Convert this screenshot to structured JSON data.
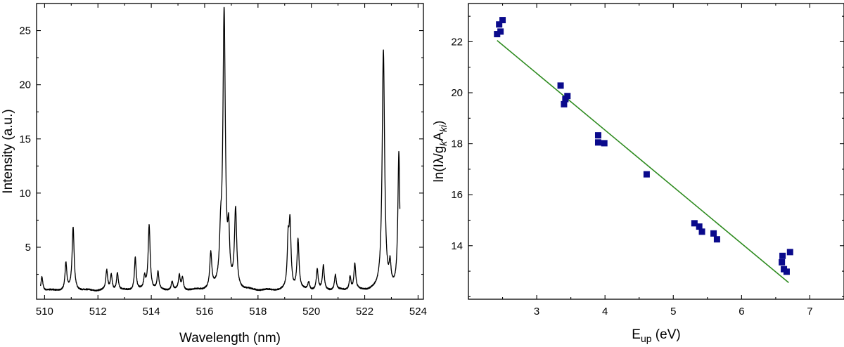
{
  "chart_data": [
    {
      "type": "line",
      "title": "",
      "xlabel": "Wavelength (nm)",
      "ylabel": "Intensity (a.u.)",
      "xlim": [
        509.7,
        524.2
      ],
      "ylim": [
        0.2,
        27.5
      ],
      "x_major_ticks": [
        510,
        512,
        514,
        516,
        518,
        520,
        522,
        524
      ],
      "y_major_ticks": [
        5,
        10,
        15,
        20,
        25
      ],
      "baseline": 1.0,
      "range": [
        509.85,
        523.32
      ],
      "peaks": [
        {
          "x": 509.9,
          "y": 2.3,
          "w": 0.04
        },
        {
          "x": 510.8,
          "y": 3.5,
          "w": 0.04
        },
        {
          "x": 511.07,
          "y": 6.8,
          "w": 0.045
        },
        {
          "x": 512.33,
          "y": 2.8,
          "w": 0.04
        },
        {
          "x": 512.5,
          "y": 2.4,
          "w": 0.04
        },
        {
          "x": 512.73,
          "y": 2.6,
          "w": 0.04
        },
        {
          "x": 513.4,
          "y": 4.0,
          "w": 0.04
        },
        {
          "x": 513.75,
          "y": 2.1,
          "w": 0.04
        },
        {
          "x": 513.92,
          "y": 7.0,
          "w": 0.045
        },
        {
          "x": 514.25,
          "y": 2.6,
          "w": 0.04
        },
        {
          "x": 514.78,
          "y": 1.8,
          "w": 0.04
        },
        {
          "x": 515.05,
          "y": 2.3,
          "w": 0.04
        },
        {
          "x": 515.17,
          "y": 2.1,
          "w": 0.04
        },
        {
          "x": 516.23,
          "y": 4.2,
          "w": 0.045
        },
        {
          "x": 516.6,
          "y": 4.7,
          "w": 0.05
        },
        {
          "x": 516.73,
          "y": 26.4,
          "w": 0.055
        },
        {
          "x": 516.9,
          "y": 5.3,
          "w": 0.04
        },
        {
          "x": 517.16,
          "y": 8.2,
          "w": 0.05
        },
        {
          "x": 519.13,
          "y": 5.0,
          "w": 0.04
        },
        {
          "x": 519.2,
          "y": 6.8,
          "w": 0.045
        },
        {
          "x": 519.5,
          "y": 5.6,
          "w": 0.045
        },
        {
          "x": 519.9,
          "y": 1.7,
          "w": 0.04
        },
        {
          "x": 520.22,
          "y": 2.9,
          "w": 0.04
        },
        {
          "x": 520.45,
          "y": 3.2,
          "w": 0.04
        },
        {
          "x": 520.9,
          "y": 2.4,
          "w": 0.04
        },
        {
          "x": 521.45,
          "y": 2.2,
          "w": 0.04
        },
        {
          "x": 521.63,
          "y": 3.4,
          "w": 0.04
        },
        {
          "x": 522.7,
          "y": 23.1,
          "w": 0.055
        },
        {
          "x": 522.95,
          "y": 2.9,
          "w": 0.04
        },
        {
          "x": 523.28,
          "y": 13.6,
          "w": 0.045
        }
      ]
    },
    {
      "type": "scatter",
      "title": "",
      "xlabel": "E",
      "xlabel_sub": "up",
      "xlabel_unit": " (eV)",
      "ylabel_parts": [
        "ln(Iλ/g",
        "k",
        "A",
        "ki",
        ")"
      ],
      "xlim": [
        2.0,
        7.5
      ],
      "ylim": [
        11.9,
        23.5
      ],
      "x_major_ticks": [
        3,
        4,
        5,
        6,
        7
      ],
      "y_major_ticks": [
        14,
        16,
        18,
        20,
        22
      ],
      "marker_color": "#0a0a8c",
      "fit_color": "#2e8b1f",
      "points": [
        {
          "x": 2.42,
          "y": 22.3
        },
        {
          "x": 2.45,
          "y": 22.68
        },
        {
          "x": 2.47,
          "y": 22.4
        },
        {
          "x": 2.5,
          "y": 22.85
        },
        {
          "x": 3.35,
          "y": 20.28
        },
        {
          "x": 3.4,
          "y": 19.55
        },
        {
          "x": 3.42,
          "y": 19.75
        },
        {
          "x": 3.45,
          "y": 19.87
        },
        {
          "x": 3.9,
          "y": 18.33
        },
        {
          "x": 3.9,
          "y": 18.05
        },
        {
          "x": 3.99,
          "y": 18.02
        },
        {
          "x": 4.61,
          "y": 16.8
        },
        {
          "x": 5.31,
          "y": 14.88
        },
        {
          "x": 5.38,
          "y": 14.75
        },
        {
          "x": 5.42,
          "y": 14.55
        },
        {
          "x": 5.59,
          "y": 14.48
        },
        {
          "x": 5.64,
          "y": 14.25
        },
        {
          "x": 6.59,
          "y": 13.35
        },
        {
          "x": 6.6,
          "y": 13.6
        },
        {
          "x": 6.62,
          "y": 13.08
        },
        {
          "x": 6.66,
          "y": 12.98
        },
        {
          "x": 6.71,
          "y": 13.75
        }
      ],
      "fit": {
        "x": [
          2.42,
          6.69
        ],
        "y": [
          22.05,
          12.55
        ]
      }
    }
  ]
}
